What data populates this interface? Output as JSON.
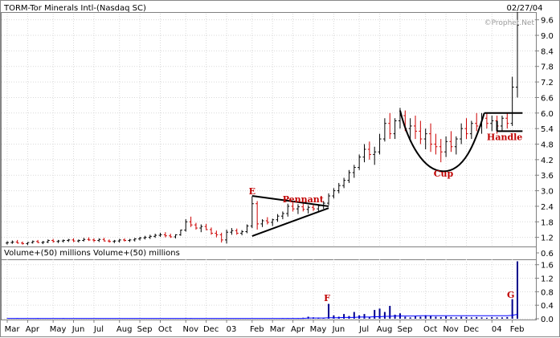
{
  "chart_data": [
    {
      "type": "bar",
      "title": "TORM-Tor Minerals Intl-(Nasdaq SC)",
      "date": "02/27/04",
      "watermark": "©Prophet.Net",
      "y_ticks": [
        "0.6",
        "1.2",
        "1.8",
        "2.4",
        "3.0",
        "3.6",
        "4.2",
        "4.8",
        "5.4",
        "6.0",
        "6.6",
        "7.2",
        "7.8",
        "8.4",
        "9.0",
        "9.6"
      ],
      "ylim": [
        0.6,
        9.9
      ],
      "x_labels": [
        {
          "label": "Mar",
          "week": 0
        },
        {
          "label": "Apr",
          "week": 4
        },
        {
          "label": "May",
          "week": 9
        },
        {
          "label": "Jun",
          "week": 13
        },
        {
          "label": "Jul",
          "week": 17
        },
        {
          "label": "Aug",
          "week": 22
        },
        {
          "label": "Sep",
          "week": 26
        },
        {
          "label": "Oct",
          "week": 30
        },
        {
          "label": "Nov",
          "week": 35
        },
        {
          "label": "Dec",
          "week": 39
        },
        {
          "label": "03",
          "week": 43
        },
        {
          "label": "Feb",
          "week": 48
        },
        {
          "label": "Mar",
          "week": 52
        },
        {
          "label": "Apr",
          "week": 56
        },
        {
          "label": "May",
          "week": 60
        },
        {
          "label": "Jun",
          "week": 64
        },
        {
          "label": "Jul",
          "week": 69
        },
        {
          "label": "Aug",
          "week": 73
        },
        {
          "label": "Sep",
          "week": 77
        },
        {
          "label": "Oct",
          "week": 82
        },
        {
          "label": "Nov",
          "week": 86
        },
        {
          "label": "Dec",
          "week": 90
        },
        {
          "label": "04",
          "week": 95
        },
        {
          "label": "Feb",
          "week": 99
        }
      ],
      "series": [
        {
          "ohlc_weekly": [
            [
              0.98,
              1.05,
              0.92,
              1.0
            ],
            [
              1.0,
              1.08,
              0.95,
              1.02
            ],
            [
              1.02,
              1.1,
              0.96,
              0.98
            ],
            [
              0.98,
              1.04,
              0.92,
              0.96
            ],
            [
              0.96,
              1.02,
              0.9,
              1.0
            ],
            [
              1.0,
              1.08,
              0.96,
              1.04
            ],
            [
              1.04,
              1.1,
              0.98,
              1.0
            ],
            [
              1.0,
              1.06,
              0.94,
              1.02
            ],
            [
              1.02,
              1.12,
              0.98,
              1.08
            ],
            [
              1.08,
              1.14,
              1.0,
              1.04
            ],
            [
              1.04,
              1.1,
              0.98,
              1.06
            ],
            [
              1.06,
              1.12,
              1.0,
              1.08
            ],
            [
              1.08,
              1.14,
              1.02,
              1.1
            ],
            [
              1.1,
              1.16,
              1.02,
              1.06
            ],
            [
              1.06,
              1.12,
              1.0,
              1.08
            ],
            [
              1.08,
              1.18,
              1.04,
              1.12
            ],
            [
              1.12,
              1.2,
              1.06,
              1.1
            ],
            [
              1.1,
              1.16,
              1.02,
              1.08
            ],
            [
              1.08,
              1.16,
              1.02,
              1.12
            ],
            [
              1.12,
              1.18,
              1.04,
              1.06
            ],
            [
              1.06,
              1.12,
              1.0,
              1.04
            ],
            [
              1.04,
              1.1,
              0.98,
              1.06
            ],
            [
              1.06,
              1.14,
              1.0,
              1.1
            ],
            [
              1.1,
              1.16,
              1.04,
              1.08
            ],
            [
              1.08,
              1.14,
              1.02,
              1.1
            ],
            [
              1.1,
              1.18,
              1.04,
              1.14
            ],
            [
              1.14,
              1.22,
              1.08,
              1.18
            ],
            [
              1.18,
              1.26,
              1.12,
              1.2
            ],
            [
              1.2,
              1.3,
              1.14,
              1.24
            ],
            [
              1.24,
              1.34,
              1.18,
              1.28
            ],
            [
              1.28,
              1.38,
              1.22,
              1.3
            ],
            [
              1.3,
              1.4,
              1.2,
              1.26
            ],
            [
              1.26,
              1.34,
              1.18,
              1.22
            ],
            [
              1.22,
              1.32,
              1.16,
              1.3
            ],
            [
              1.3,
              1.5,
              1.26,
              1.48
            ],
            [
              1.48,
              1.9,
              1.42,
              1.8
            ],
            [
              1.8,
              2.0,
              1.6,
              1.68
            ],
            [
              1.68,
              1.76,
              1.5,
              1.56
            ],
            [
              1.56,
              1.7,
              1.4,
              1.62
            ],
            [
              1.62,
              1.72,
              1.48,
              1.5
            ],
            [
              1.5,
              1.58,
              1.3,
              1.36
            ],
            [
              1.36,
              1.46,
              1.2,
              1.3
            ],
            [
              1.3,
              1.38,
              1.0,
              1.1
            ],
            [
              1.1,
              1.5,
              0.96,
              1.4
            ],
            [
              1.4,
              1.56,
              1.3,
              1.46
            ],
            [
              1.46,
              1.54,
              1.3,
              1.36
            ],
            [
              1.36,
              1.48,
              1.28,
              1.42
            ],
            [
              1.42,
              1.7,
              1.36,
              1.64
            ],
            [
              1.64,
              2.78,
              1.56,
              2.5
            ],
            [
              2.5,
              2.6,
              1.5,
              1.72
            ],
            [
              1.72,
              1.9,
              1.6,
              1.84
            ],
            [
              1.84,
              1.98,
              1.7,
              1.78
            ],
            [
              1.78,
              1.92,
              1.64,
              1.88
            ],
            [
              1.88,
              2.1,
              1.8,
              2.02
            ],
            [
              2.02,
              2.2,
              1.9,
              2.12
            ],
            [
              2.12,
              2.5,
              2.0,
              2.4
            ],
            [
              2.4,
              2.6,
              2.2,
              2.3
            ],
            [
              2.3,
              2.48,
              2.1,
              2.38
            ],
            [
              2.38,
              2.52,
              2.2,
              2.28
            ],
            [
              2.28,
              2.44,
              2.12,
              2.36
            ],
            [
              2.36,
              2.5,
              2.22,
              2.3
            ],
            [
              2.3,
              2.48,
              2.18,
              2.42
            ],
            [
              2.42,
              2.6,
              2.3,
              2.52
            ],
            [
              2.52,
              2.9,
              2.44,
              2.8
            ],
            [
              2.8,
              3.1,
              2.7,
              3.0
            ],
            [
              3.0,
              3.3,
              2.9,
              3.2
            ],
            [
              3.2,
              3.5,
              3.1,
              3.4
            ],
            [
              3.4,
              3.8,
              3.3,
              3.7
            ],
            [
              3.7,
              4.0,
              3.5,
              3.9
            ],
            [
              3.9,
              4.4,
              3.8,
              4.3
            ],
            [
              4.3,
              4.8,
              4.1,
              4.6
            ],
            [
              4.6,
              4.9,
              4.2,
              4.4
            ],
            [
              4.4,
              4.7,
              4.0,
              4.5
            ],
            [
              4.5,
              5.2,
              4.4,
              5.0
            ],
            [
              5.0,
              5.8,
              4.9,
              5.6
            ],
            [
              5.6,
              6.0,
              5.0,
              5.2
            ],
            [
              5.2,
              5.8,
              5.0,
              5.7
            ],
            [
              5.7,
              6.2,
              5.4,
              5.9
            ],
            [
              5.9,
              6.1,
              5.3,
              5.4
            ],
            [
              5.4,
              5.8,
              4.9,
              5.5
            ],
            [
              5.5,
              5.9,
              5.0,
              5.3
            ],
            [
              5.3,
              5.7,
              4.8,
              5.0
            ],
            [
              5.0,
              5.4,
              4.6,
              5.2
            ],
            [
              5.2,
              5.6,
              4.5,
              4.8
            ],
            [
              4.8,
              5.2,
              4.4,
              4.7
            ],
            [
              4.7,
              5.0,
              4.1,
              4.5
            ],
            [
              4.5,
              5.1,
              4.3,
              4.9
            ],
            [
              4.9,
              5.3,
              4.5,
              4.7
            ],
            [
              4.7,
              5.1,
              4.4,
              5.0
            ],
            [
              5.0,
              5.6,
              4.8,
              5.4
            ],
            [
              5.4,
              5.8,
              5.0,
              5.2
            ],
            [
              5.2,
              5.7,
              5.0,
              5.6
            ],
            [
              5.6,
              6.0,
              5.3,
              5.5
            ],
            [
              5.5,
              6.0,
              5.2,
              5.8
            ],
            [
              5.8,
              6.0,
              5.4,
              5.6
            ],
            [
              5.6,
              5.9,
              5.3,
              5.7
            ],
            [
              5.7,
              5.9,
              5.2,
              5.5
            ],
            [
              5.5,
              5.9,
              5.3,
              5.8
            ],
            [
              5.8,
              6.0,
              5.4,
              5.6
            ],
            [
              5.6,
              7.4,
              5.5,
              7.0
            ],
            [
              7.0,
              9.9,
              6.6,
              9.4
            ]
          ]
        }
      ],
      "annotations": [
        {
          "text": "E",
          "week": 48,
          "price": 2.86
        },
        {
          "text": "Pennant",
          "week": 58,
          "price": 2.55
        },
        {
          "text": "Cup",
          "week": 85.5,
          "price": 3.55
        },
        {
          "text": "Handle",
          "week": 97.5,
          "price": 4.95
        }
      ],
      "pattern_lines": [
        {
          "name": "pennant-upper",
          "points": [
            [
              48,
              2.8
            ],
            [
              63,
              2.4
            ]
          ]
        },
        {
          "name": "pennant-lower",
          "points": [
            [
              48,
              1.25
            ],
            [
              63,
              2.33
            ]
          ]
        },
        {
          "name": "handle-top",
          "points": [
            [
              93.5,
              6.0
            ],
            [
              101,
              6.0
            ]
          ]
        },
        {
          "name": "handle-bottom",
          "points": [
            [
              96,
              5.3
            ],
            [
              101,
              5.3
            ]
          ]
        },
        {
          "name": "handle-left",
          "points": [
            [
              96,
              5.3
            ],
            [
              96,
              5.7
            ]
          ]
        }
      ],
      "cup_curve": {
        "start": [
          77,
          6.1
        ],
        "bottom": [
          85.5,
          3.75
        ],
        "end": [
          93.5,
          6.0
        ]
      },
      "up_color": "#000000",
      "down_color": "#cc0000",
      "grid": true
    },
    {
      "type": "bar",
      "title": "Volume+(50) millions",
      "title_repeat": "Volume+(50) millions",
      "y_ticks": [
        "0.0",
        "0.4",
        "0.8",
        "1.2",
        "1.6"
      ],
      "ylim": [
        0.0,
        1.76
      ],
      "series": [
        {
          "values": [
            0.01,
            0.01,
            0.02,
            0.01,
            0.01,
            0.01,
            0.02,
            0.01,
            0.01,
            0.01,
            0.01,
            0.02,
            0.01,
            0.01,
            0.01,
            0.01,
            0.01,
            0.01,
            0.01,
            0.01,
            0.01,
            0.01,
            0.01,
            0.01,
            0.01,
            0.01,
            0.01,
            0.01,
            0.01,
            0.01,
            0.01,
            0.01,
            0.01,
            0.01,
            0.01,
            0.02,
            0.02,
            0.01,
            0.01,
            0.01,
            0.01,
            0.01,
            0.01,
            0.01,
            0.01,
            0.01,
            0.01,
            0.01,
            0.01,
            0.01,
            0.01,
            0.01,
            0.01,
            0.01,
            0.02,
            0.02,
            0.02,
            0.02,
            0.03,
            0.06,
            0.04,
            0.03,
            0.02,
            0.44,
            0.1,
            0.06,
            0.14,
            0.08,
            0.2,
            0.1,
            0.14,
            0.06,
            0.26,
            0.3,
            0.2,
            0.38,
            0.12,
            0.16,
            0.06,
            0.04,
            0.08,
            0.06,
            0.1,
            0.08,
            0.06,
            0.05,
            0.07,
            0.05,
            0.04,
            0.06,
            0.05,
            0.04,
            0.05,
            0.04,
            0.03,
            0.05,
            0.04,
            0.04,
            0.05,
            0.58,
            1.7
          ],
          "average_50": [
            0.01,
            0.01,
            0.01,
            0.01,
            0.01,
            0.01,
            0.01,
            0.01,
            0.01,
            0.01,
            0.01,
            0.01,
            0.01,
            0.01,
            0.01,
            0.01,
            0.01,
            0.01,
            0.01,
            0.01,
            0.01,
            0.01,
            0.01,
            0.01,
            0.01,
            0.01,
            0.01,
            0.01,
            0.01,
            0.01,
            0.01,
            0.01,
            0.01,
            0.01,
            0.01,
            0.01,
            0.01,
            0.01,
            0.01,
            0.01,
            0.01,
            0.01,
            0.01,
            0.01,
            0.01,
            0.01,
            0.01,
            0.01,
            0.01,
            0.01,
            0.01,
            0.01,
            0.01,
            0.01,
            0.01,
            0.01,
            0.01,
            0.01,
            0.01,
            0.02,
            0.02,
            0.02,
            0.02,
            0.03,
            0.03,
            0.03,
            0.04,
            0.04,
            0.04,
            0.05,
            0.05,
            0.05,
            0.06,
            0.06,
            0.07,
            0.07,
            0.08,
            0.08,
            0.08,
            0.08,
            0.08,
            0.09,
            0.09,
            0.09,
            0.09,
            0.09,
            0.09,
            0.09,
            0.09,
            0.09,
            0.09,
            0.09,
            0.09,
            0.09,
            0.09,
            0.09,
            0.09,
            0.09,
            0.09,
            0.1,
            0.13
          ]
        }
      ],
      "annotations": [
        {
          "text": "F",
          "week": 63,
          "value": 0.52
        },
        {
          "text": "G",
          "week": 99,
          "value": 0.62
        }
      ],
      "bar_color": "#00008b",
      "average_color": "#0000ff",
      "grid": true
    }
  ]
}
